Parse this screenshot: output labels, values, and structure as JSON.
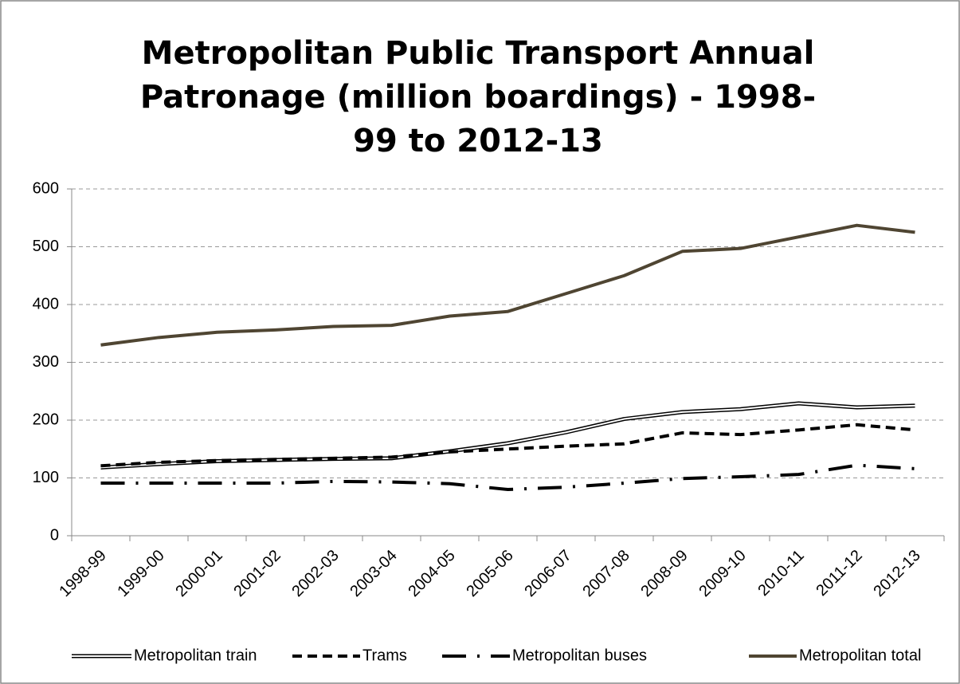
{
  "chart_data": {
    "type": "line",
    "title": "Metropolitan Public Transport Annual Patronage (million boardings) - 1998-99 to 2012-13",
    "categories": [
      "1998-99",
      "1999-00",
      "2000-01",
      "2001-02",
      "2002-03",
      "2003-04",
      "2004-05",
      "2005-06",
      "2006-07",
      "2007-08",
      "2008-09",
      "2009-10",
      "2010-11",
      "2011-12",
      "2012-13"
    ],
    "series": [
      {
        "name": "Metropolitan train",
        "color": "#000000",
        "line_style": "double",
        "values": [
          118,
          124,
          129,
          131,
          133,
          134,
          146,
          160,
          179,
          202,
          214,
          219,
          229,
          222,
          225
        ]
      },
      {
        "name": "Trams",
        "color": "#000000",
        "line_style": "dashed",
        "values": [
          121,
          127,
          130,
          132,
          134,
          136,
          145,
          150,
          155,
          159,
          178,
          175,
          183,
          192,
          183
        ]
      },
      {
        "name": "Metropolitan buses",
        "color": "#000000",
        "line_style": "dash-dot",
        "values": [
          91,
          91,
          91,
          91,
          94,
          93,
          90,
          80,
          84,
          91,
          99,
          102,
          106,
          122,
          116
        ]
      },
      {
        "name": "Metropolitan total",
        "color": "#4f4532",
        "line_style": "solid",
        "values": [
          330,
          343,
          352,
          356,
          362,
          364,
          380,
          388,
          419,
          450,
          492,
          497,
          517,
          537,
          525
        ]
      }
    ],
    "ylim": [
      0,
      600
    ],
    "yticks": [
      0,
      100,
      200,
      300,
      400,
      500,
      600
    ],
    "grid": true,
    "legend": "bottom"
  }
}
